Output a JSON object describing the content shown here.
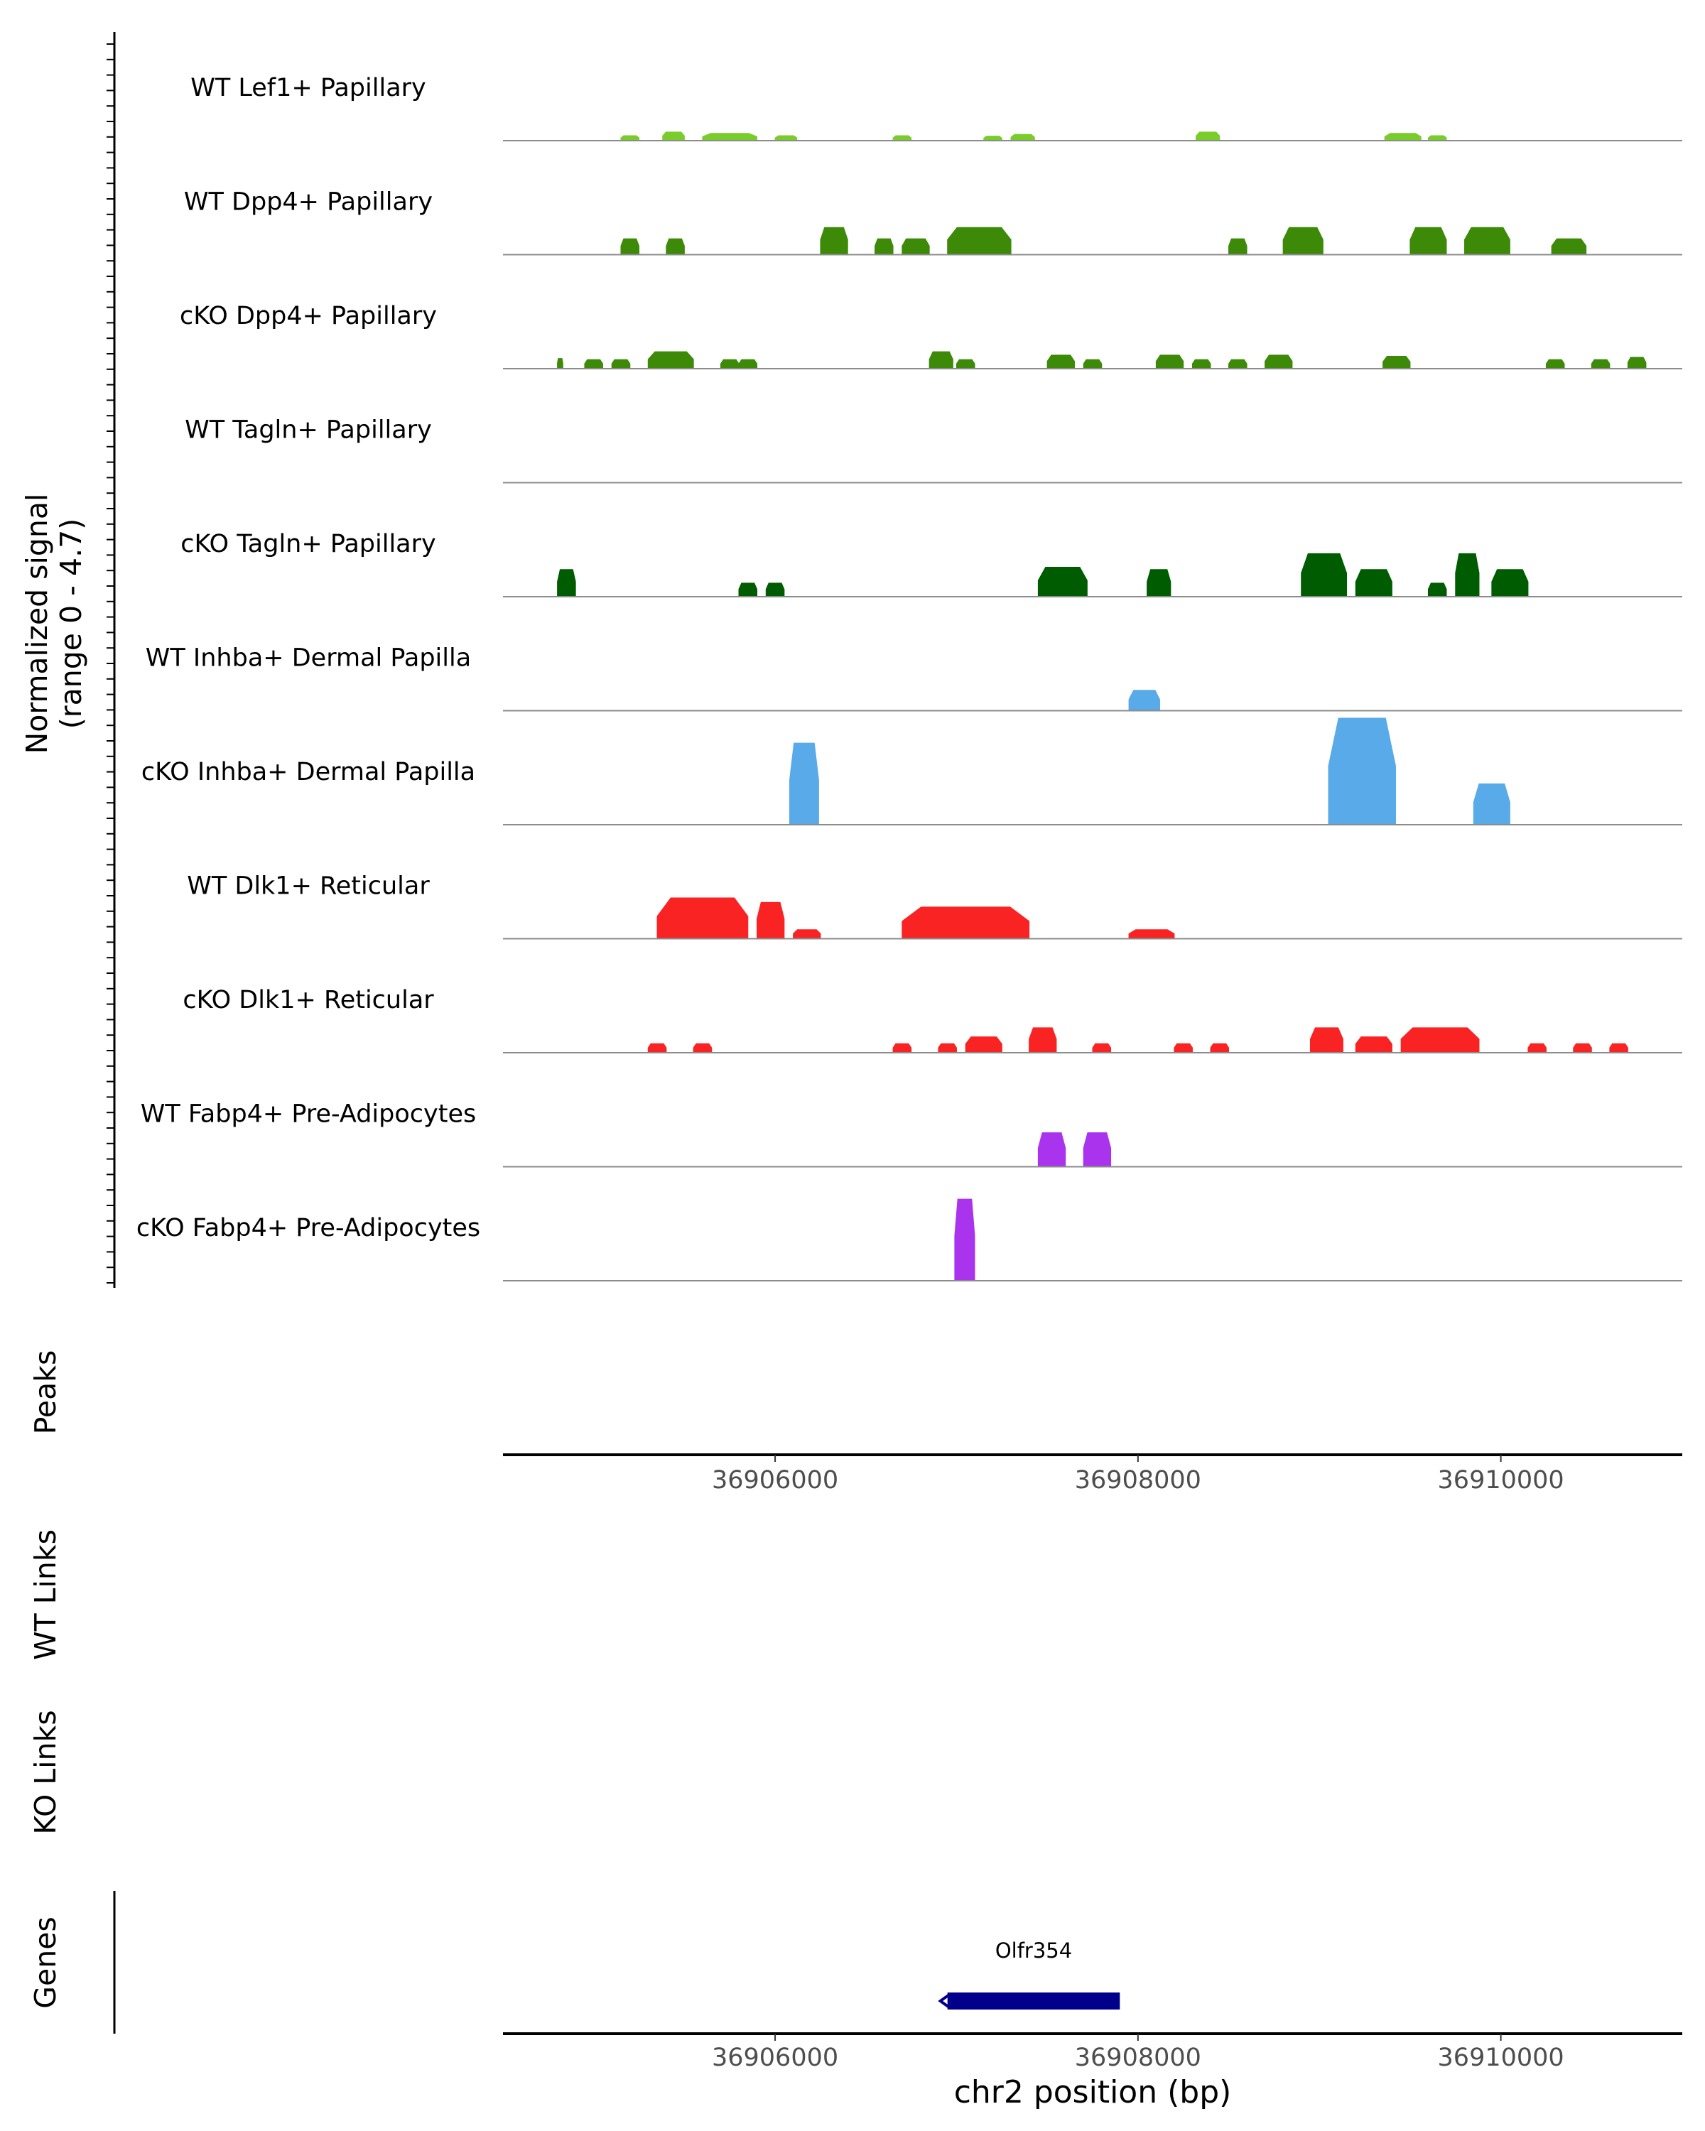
{
  "chart_data": {
    "type": "area",
    "title": "",
    "chromosome": "chr2",
    "xlim": [
      36904500,
      36911000
    ],
    "signal_ylabel": "Normalized signal",
    "signal_range_label": "(range 0 - 4.7)",
    "ylim": [
      0,
      4.7
    ],
    "tracks": [
      {
        "name": "WT Lef1+ Papillary",
        "color": "#7acc2a",
        "peaks": [
          {
            "start": 36905150,
            "end": 36905250,
            "height": 0.22
          },
          {
            "start": 36905380,
            "end": 36905500,
            "height": 0.38
          },
          {
            "start": 36905600,
            "end": 36905900,
            "height": 0.32
          },
          {
            "start": 36906000,
            "end": 36906120,
            "height": 0.22
          },
          {
            "start": 36906650,
            "end": 36906750,
            "height": 0.22
          },
          {
            "start": 36907150,
            "end": 36907250,
            "height": 0.2
          },
          {
            "start": 36907300,
            "end": 36907430,
            "height": 0.28
          },
          {
            "start": 36908320,
            "end": 36908450,
            "height": 0.38
          },
          {
            "start": 36909360,
            "end": 36909560,
            "height": 0.32
          },
          {
            "start": 36909600,
            "end": 36909700,
            "height": 0.22
          }
        ]
      },
      {
        "name": "WT Dpp4+ Papillary",
        "color": "#3d8a08",
        "peaks": [
          {
            "start": 36905150,
            "end": 36905250,
            "height": 0.7
          },
          {
            "start": 36905400,
            "end": 36905500,
            "height": 0.7
          },
          {
            "start": 36906250,
            "end": 36906400,
            "height": 1.2
          },
          {
            "start": 36906550,
            "end": 36906650,
            "height": 0.7
          },
          {
            "start": 36906700,
            "end": 36906850,
            "height": 0.7
          },
          {
            "start": 36906950,
            "end": 36907300,
            "height": 1.2
          },
          {
            "start": 36908500,
            "end": 36908600,
            "height": 0.7
          },
          {
            "start": 36908800,
            "end": 36909020,
            "height": 1.2
          },
          {
            "start": 36909500,
            "end": 36909700,
            "height": 1.2
          },
          {
            "start": 36909800,
            "end": 36910050,
            "height": 1.2
          },
          {
            "start": 36910280,
            "end": 36910470,
            "height": 0.7
          }
        ]
      },
      {
        "name": "cKO Dpp4+ Papillary",
        "color": "#3d8a08",
        "peaks": [
          {
            "start": 36904800,
            "end": 36904830,
            "height": 0.45
          },
          {
            "start": 36904950,
            "end": 36905050,
            "height": 0.4
          },
          {
            "start": 36905100,
            "end": 36905200,
            "height": 0.4
          },
          {
            "start": 36905300,
            "end": 36905550,
            "height": 0.75
          },
          {
            "start": 36905700,
            "end": 36905800,
            "height": 0.4
          },
          {
            "start": 36905800,
            "end": 36905900,
            "height": 0.4
          },
          {
            "start": 36906850,
            "end": 36906980,
            "height": 0.75
          },
          {
            "start": 36907000,
            "end": 36907100,
            "height": 0.4
          },
          {
            "start": 36907500,
            "end": 36907650,
            "height": 0.6
          },
          {
            "start": 36907700,
            "end": 36907800,
            "height": 0.4
          },
          {
            "start": 36908100,
            "end": 36908250,
            "height": 0.6
          },
          {
            "start": 36908300,
            "end": 36908400,
            "height": 0.4
          },
          {
            "start": 36908500,
            "end": 36908600,
            "height": 0.4
          },
          {
            "start": 36908700,
            "end": 36908850,
            "height": 0.6
          },
          {
            "start": 36909350,
            "end": 36909500,
            "height": 0.55
          },
          {
            "start": 36910250,
            "end": 36910350,
            "height": 0.4
          },
          {
            "start": 36910500,
            "end": 36910600,
            "height": 0.4
          },
          {
            "start": 36910700,
            "end": 36910800,
            "height": 0.5
          }
        ]
      },
      {
        "name": "WT Tagln+ Papillary",
        "color": "#005c00",
        "peaks": []
      },
      {
        "name": "cKO Tagln+ Papillary",
        "color": "#005c00",
        "peaks": [
          {
            "start": 36904800,
            "end": 36904900,
            "height": 1.2
          },
          {
            "start": 36905800,
            "end": 36905900,
            "height": 0.6
          },
          {
            "start": 36905950,
            "end": 36906050,
            "height": 0.6
          },
          {
            "start": 36907450,
            "end": 36907720,
            "height": 1.3
          },
          {
            "start": 36908050,
            "end": 36908180,
            "height": 1.2
          },
          {
            "start": 36908900,
            "end": 36909150,
            "height": 1.9
          },
          {
            "start": 36909200,
            "end": 36909400,
            "height": 1.2
          },
          {
            "start": 36909600,
            "end": 36909700,
            "height": 0.6
          },
          {
            "start": 36909750,
            "end": 36909880,
            "height": 1.9
          },
          {
            "start": 36909950,
            "end": 36910150,
            "height": 1.2
          }
        ]
      },
      {
        "name": "WT Inhba+ Dermal Papilla",
        "color": "#58aae8",
        "peaks": [
          {
            "start": 36907950,
            "end": 36908120,
            "height": 0.9
          }
        ]
      },
      {
        "name": "cKO Inhba+ Dermal Papilla",
        "color": "#58aae8",
        "peaks": [
          {
            "start": 36906080,
            "end": 36906240,
            "height": 3.6
          },
          {
            "start": 36909050,
            "end": 36909420,
            "height": 4.7
          },
          {
            "start": 36909850,
            "end": 36910050,
            "height": 1.8
          }
        ]
      },
      {
        "name": "WT Dlk1+ Reticular",
        "color": "#fa2323",
        "peaks": [
          {
            "start": 36905350,
            "end": 36905850,
            "height": 1.8
          },
          {
            "start": 36905900,
            "end": 36906050,
            "height": 1.6
          },
          {
            "start": 36906100,
            "end": 36906250,
            "height": 0.4
          },
          {
            "start": 36906700,
            "end": 36907400,
            "height": 1.4
          },
          {
            "start": 36907950,
            "end": 36908200,
            "height": 0.4
          }
        ]
      },
      {
        "name": "cKO Dlk1+ Reticular",
        "color": "#fa2323",
        "peaks": [
          {
            "start": 36905300,
            "end": 36905400,
            "height": 0.4
          },
          {
            "start": 36905550,
            "end": 36905650,
            "height": 0.4
          },
          {
            "start": 36906650,
            "end": 36906750,
            "height": 0.4
          },
          {
            "start": 36906900,
            "end": 36907000,
            "height": 0.4
          },
          {
            "start": 36907050,
            "end": 36907250,
            "height": 0.7
          },
          {
            "start": 36907400,
            "end": 36907550,
            "height": 1.1
          },
          {
            "start": 36907750,
            "end": 36907850,
            "height": 0.4
          },
          {
            "start": 36908200,
            "end": 36908300,
            "height": 0.4
          },
          {
            "start": 36908400,
            "end": 36908500,
            "height": 0.4
          },
          {
            "start": 36908950,
            "end": 36909130,
            "height": 1.1
          },
          {
            "start": 36909200,
            "end": 36909400,
            "height": 0.7
          },
          {
            "start": 36909450,
            "end": 36909880,
            "height": 1.1
          },
          {
            "start": 36910150,
            "end": 36910250,
            "height": 0.4
          },
          {
            "start": 36910400,
            "end": 36910500,
            "height": 0.4
          },
          {
            "start": 36910600,
            "end": 36910700,
            "height": 0.4
          }
        ]
      },
      {
        "name": "WT Fabp4+ Pre-Adipocytes",
        "color": "#aa33ee",
        "peaks": [
          {
            "start": 36907450,
            "end": 36907600,
            "height": 1.5
          },
          {
            "start": 36907700,
            "end": 36907850,
            "height": 1.5
          }
        ]
      },
      {
        "name": "cKO Fabp4+ Pre-Adipocytes",
        "color": "#aa33ee",
        "peaks": [
          {
            "start": 36906990,
            "end": 36907100,
            "height": 3.6
          }
        ]
      }
    ],
    "peaks_label": "Peaks",
    "wt_links_label": "WT Links",
    "ko_links_label": "KO Links",
    "genes_label": "Genes",
    "gene": {
      "name": "Olfr354",
      "start": 36906950,
      "end": 36907900,
      "strand": "-",
      "color": "#00008b"
    },
    "x_ticks": [
      36906000,
      36908000,
      36910000
    ],
    "x_tick_labels": [
      "36906000",
      "36908000",
      "36910000"
    ],
    "xlabel": "chr2 position (bp)"
  }
}
